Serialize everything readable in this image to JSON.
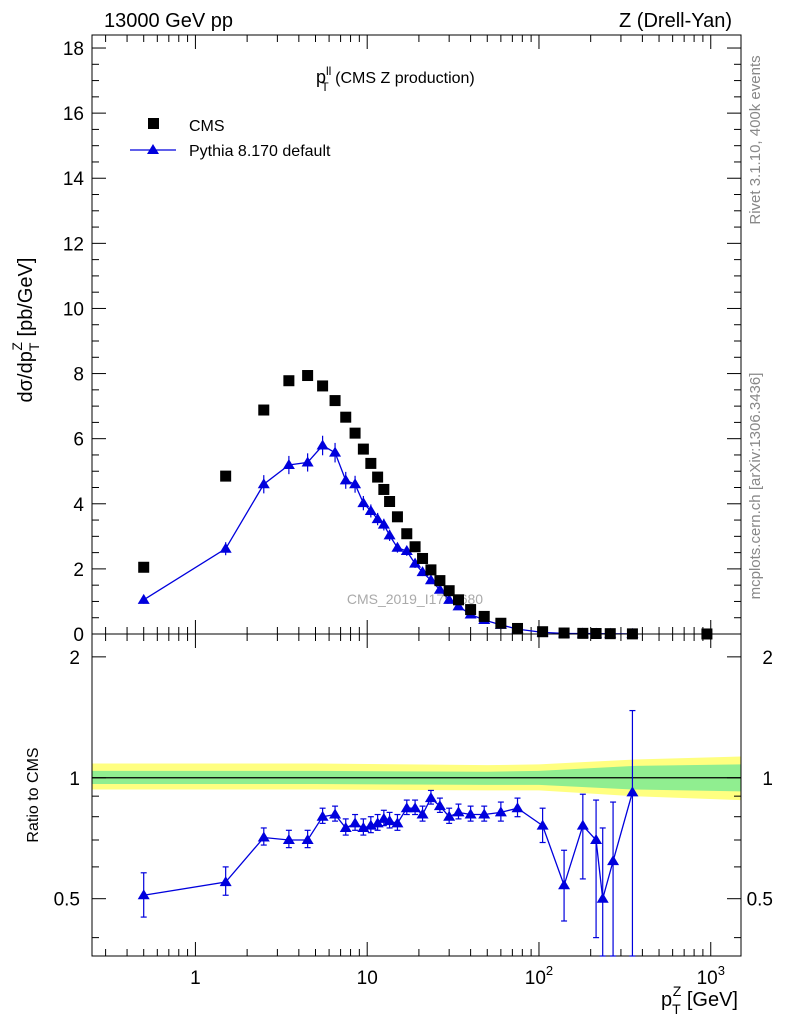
{
  "header": {
    "left": "13000 GeV pp",
    "right": "Z (Drell-Yan)"
  },
  "side_labels": {
    "rivet": "Rivet 3.1.10,  400k events",
    "mcplots": "mcplots.cern.ch [arXiv:1306.3436]"
  },
  "chart_data": [
    {
      "type": "scatter",
      "panel": "main",
      "title_main": "p",
      "title_sup": "ll",
      "title_sub": "T",
      "title_rest": " (CMS Z production)",
      "ylabel": "dσ/dp",
      "ylabel_sub": "T",
      "ylabel_sup": "Z",
      "ylabel_unit": " [pb/GeV]",
      "watermark": "CMS_2019_I1753680",
      "xscale": "log",
      "xlim": [
        0.25,
        1500
      ],
      "ylim": [
        0,
        18.4
      ],
      "yticks": [
        0,
        2,
        4,
        6,
        8,
        10,
        12,
        14,
        16,
        18
      ],
      "legend_position": "top-left",
      "series": [
        {
          "name": "CMS",
          "marker": "square",
          "color": "#000000",
          "x": [
            0.5,
            1.5,
            2.5,
            3.5,
            4.5,
            5.5,
            6.5,
            7.5,
            8.5,
            9.5,
            10.5,
            11.5,
            12.5,
            13.5,
            15,
            17,
            19,
            21,
            23.5,
            26.5,
            30,
            34,
            40,
            48,
            60,
            75,
            105,
            140,
            180,
            215,
            260,
            350,
            950
          ],
          "y": [
            2.05,
            4.85,
            6.88,
            7.78,
            7.94,
            7.62,
            7.17,
            6.66,
            6.17,
            5.68,
            5.24,
            4.82,
            4.44,
            4.07,
            3.6,
            3.08,
            2.68,
            2.32,
            1.97,
            1.64,
            1.33,
            1.05,
            0.75,
            0.54,
            0.33,
            0.17,
            0.07,
            0.03,
            0.02,
            0.015,
            0.01,
            0.004,
            0.001
          ]
        },
        {
          "name": "Pythia 8.170 default",
          "marker": "triangle",
          "color": "#0000dd",
          "x": [
            0.5,
            1.5,
            2.5,
            3.5,
            4.5,
            5.5,
            6.5,
            7.5,
            8.5,
            9.5,
            10.5,
            11.5,
            12.5,
            13.5,
            15,
            17,
            19,
            21,
            23.5,
            26.5,
            30,
            34,
            40,
            48,
            60,
            75,
            105,
            140,
            180,
            215,
            260,
            350
          ],
          "y": [
            1.05,
            2.62,
            4.6,
            5.19,
            5.27,
            5.79,
            5.57,
            4.72,
            4.6,
            4.02,
            3.78,
            3.53,
            3.36,
            3.03,
            2.65,
            2.55,
            2.16,
            1.9,
            1.65,
            1.36,
            1.05,
            0.85,
            0.6,
            0.43,
            0.28,
            0.15,
            0.05,
            0.02,
            0.015,
            0.01,
            0.006,
            0.003
          ],
          "err": [
            0.12,
            0.2,
            0.28,
            0.28,
            0.28,
            0.3,
            0.3,
            0.26,
            0.26,
            0.22,
            0.2,
            0.19,
            0.18,
            0.17,
            0.15,
            0.15,
            0.13,
            0.12,
            0.11,
            0.09,
            0.08,
            0.06,
            0.05,
            0.04,
            0.03,
            0.02,
            0.01,
            0.005,
            0.005,
            0.004,
            0.003,
            0.002
          ]
        }
      ]
    },
    {
      "type": "line",
      "panel": "ratio",
      "ylabel": "Ratio to CMS",
      "xlabel": "p",
      "xlabel_sub": "T",
      "xlabel_sup": "Z",
      "xlabel_unit": " [GeV]",
      "xscale": "log",
      "xlim": [
        0.25,
        1500
      ],
      "ylim": [
        0.36,
        2.28
      ],
      "yscale": "log",
      "yticks": [
        0.5,
        1,
        2
      ],
      "xtick_labels": [
        "1",
        "10",
        "10",
        "10"
      ],
      "xtick_label_exps": [
        "",
        "",
        "2",
        "3"
      ],
      "band_yellow": {
        "x": [
          0.25,
          5,
          50,
          100,
          350,
          1500
        ],
        "lo": [
          0.935,
          0.935,
          0.93,
          0.93,
          0.9,
          0.88
        ],
        "hi": [
          1.085,
          1.085,
          1.075,
          1.08,
          1.11,
          1.13
        ]
      },
      "band_green": {
        "x": [
          0.25,
          5,
          50,
          100,
          350,
          1500
        ],
        "lo": [
          0.965,
          0.965,
          0.96,
          0.96,
          0.935,
          0.925
        ],
        "hi": [
          1.04,
          1.04,
          1.035,
          1.04,
          1.07,
          1.08
        ]
      },
      "series": [
        {
          "name": "Pythia 8.170 default",
          "color": "#0000dd",
          "x": [
            0.5,
            1.5,
            2.5,
            3.5,
            4.5,
            5.5,
            6.5,
            7.5,
            8.5,
            9.5,
            10.5,
            11.5,
            12.5,
            13.5,
            15,
            17,
            19,
            21,
            23.5,
            26.5,
            30,
            34,
            40,
            48,
            60,
            75,
            105,
            140,
            180,
            215,
            235,
            270,
            350
          ],
          "y": [
            0.51,
            0.55,
            0.71,
            0.7,
            0.7,
            0.8,
            0.81,
            0.75,
            0.77,
            0.75,
            0.76,
            0.77,
            0.79,
            0.78,
            0.77,
            0.84,
            0.84,
            0.81,
            0.89,
            0.85,
            0.8,
            0.82,
            0.81,
            0.81,
            0.82,
            0.84,
            0.76,
            0.54,
            0.76,
            0.7,
            0.5,
            0.62,
            0.92
          ],
          "err_lo": [
            0.06,
            0.04,
            0.03,
            0.03,
            0.03,
            0.03,
            0.03,
            0.03,
            0.03,
            0.03,
            0.03,
            0.03,
            0.03,
            0.03,
            0.03,
            0.03,
            0.03,
            0.03,
            0.03,
            0.03,
            0.03,
            0.03,
            0.03,
            0.03,
            0.04,
            0.04,
            0.07,
            0.1,
            0.2,
            0.3,
            0.2,
            0.3,
            0.6
          ],
          "err_hi": [
            0.07,
            0.05,
            0.04,
            0.04,
            0.04,
            0.04,
            0.04,
            0.04,
            0.04,
            0.04,
            0.04,
            0.04,
            0.04,
            0.04,
            0.04,
            0.04,
            0.04,
            0.04,
            0.04,
            0.04,
            0.04,
            0.04,
            0.04,
            0.04,
            0.05,
            0.05,
            0.08,
            0.12,
            0.15,
            0.18,
            0.25,
            0.25,
            0.55
          ]
        }
      ]
    }
  ]
}
